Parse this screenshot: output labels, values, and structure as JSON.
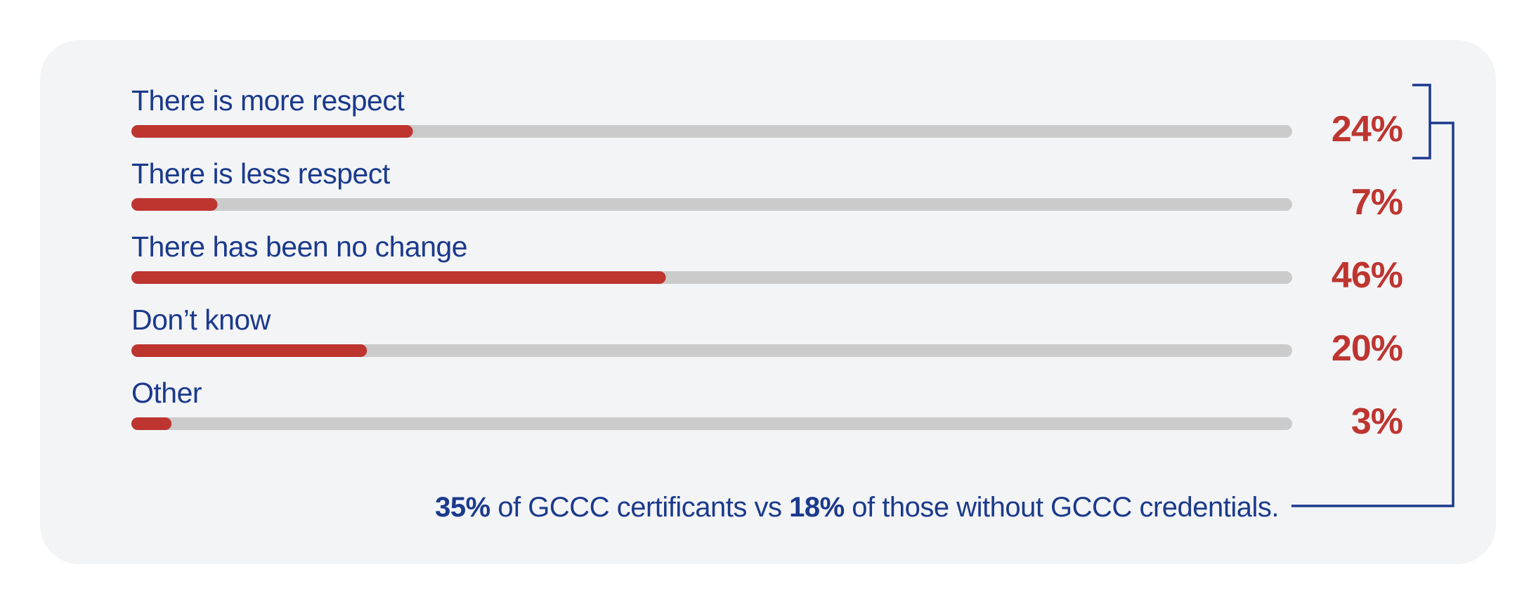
{
  "colors": {
    "accent": "#be3530",
    "track": "#cbcbcb",
    "text": "#1b3a8c",
    "card": "#f3f4f6"
  },
  "chart_data": {
    "type": "bar",
    "orientation": "horizontal",
    "categories": [
      "There is more respect",
      "There is less respect",
      "There has been no change",
      "Don’t know",
      "Other"
    ],
    "values": [
      24,
      7,
      46,
      20,
      3
    ],
    "value_labels": [
      "24%",
      "7%",
      "46%",
      "20%",
      "3%"
    ],
    "xlim": [
      0,
      100
    ],
    "grid": false,
    "annotation": {
      "bracket_target": "There is more respect",
      "parts": [
        {
          "text": "35%",
          "bold": true
        },
        {
          "text": " of GCCC certificants vs ",
          "bold": false
        },
        {
          "text": "18%",
          "bold": true
        },
        {
          "text": " of those without GCCC credentials.",
          "bold": false
        }
      ]
    }
  }
}
